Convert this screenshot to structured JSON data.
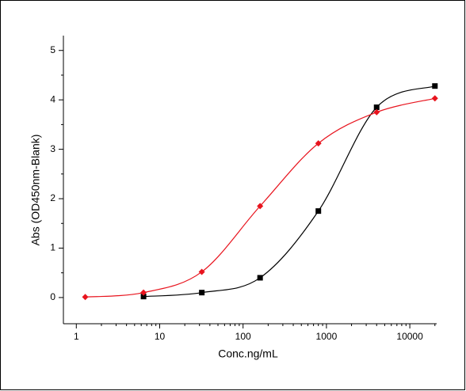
{
  "chart_data": {
    "type": "scatter",
    "x_label": "Conc.ng/mL",
    "y_label": "Abs (OD450nm-Blank)",
    "log_x": true,
    "xlim": [
      0.7,
      21000
    ],
    "ylim": [
      -0.53,
      5.3
    ],
    "xticks": [
      1,
      10,
      100,
      1000,
      10000
    ],
    "xminor_ticks": [
      2,
      3,
      4,
      5,
      6,
      7,
      8,
      9,
      20,
      30,
      40,
      50,
      60,
      70,
      80,
      90,
      200,
      300,
      400,
      500,
      600,
      700,
      800,
      900,
      2000,
      3000,
      4000,
      5000,
      6000,
      7000,
      8000,
      9000,
      20000
    ],
    "yticks": [
      0,
      1,
      2,
      3,
      4,
      5
    ],
    "yminor_ticks": [
      0.5,
      1.5,
      2.5,
      3.5,
      4.5
    ],
    "series": [
      {
        "color": "#000000",
        "marker": "square",
        "x": [
          6.4,
          32,
          160,
          800,
          4000,
          20000
        ],
        "values": [
          0.02,
          0.1,
          0.4,
          1.75,
          3.85,
          4.28
        ]
      },
      {
        "color": "#e8141e",
        "marker": "diamond",
        "x": [
          1.28,
          6.4,
          32,
          160,
          800,
          4000,
          20000
        ],
        "values": [
          0.01,
          0.1,
          0.52,
          1.85,
          3.12,
          3.75,
          4.03
        ]
      }
    ]
  }
}
